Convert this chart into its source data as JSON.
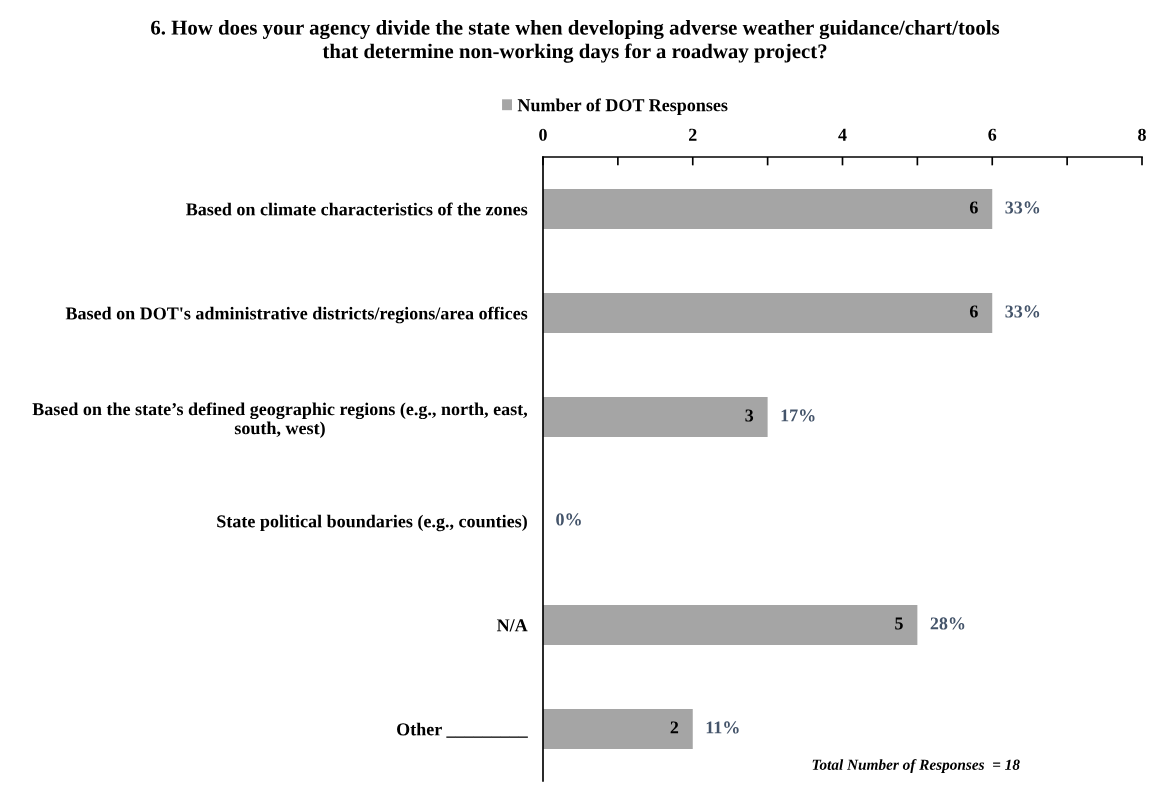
{
  "chart_data": {
    "type": "bar",
    "orientation": "horizontal",
    "title": "6. How does your agency divide the state when developing adverse weather guidance/chart/tools that determine non-working days for a roadway project?",
    "categories": [
      "Based on climate characteristics of the zones",
      "Based on DOT's administrative districts/regions/area offices",
      "Based on the state’s defined geographic regions (e.g., north, east, south, west)",
      "State political boundaries (e.g., counties)",
      "N/A",
      "Other _________"
    ],
    "series": [
      {
        "name": "Number of DOT Responses",
        "color": "#a5a5a5",
        "values": [
          6,
          6,
          3,
          0,
          5,
          2
        ],
        "value_labels": [
          "6",
          "6",
          "3",
          null,
          "5",
          "2"
        ]
      }
    ],
    "xlim": [
      0,
      8
    ],
    "xticks": [
      0,
      {
        "value": 1,
        "label": null
      },
      2,
      {
        "value": 3,
        "label": null
      },
      4,
      {
        "value": 5,
        "label": null
      },
      6,
      {
        "value": 7,
        "label": null
      },
      8
    ],
    "legend": "top",
    "annotations": [
      {
        "text": "33%",
        "x": 6,
        "y": "Based on climate characteristics of the zones"
      },
      {
        "text": "33%",
        "x": 6,
        "y": "Based on DOT's administrative districts/regions/area offices"
      },
      {
        "text": "17%",
        "x": 3,
        "y": "Based on the state’s defined geographic regions (e.g., north, east, south, west)"
      },
      {
        "text": "0%",
        "x": 0,
        "y": "State political boundaries (e.g., counties)"
      },
      {
        "text": "28%",
        "x": 5,
        "y": "N/A"
      },
      {
        "text": "11%",
        "x": 2,
        "y": "Other _________"
      },
      "Total Number of Responses  = 18"
    ]
  }
}
